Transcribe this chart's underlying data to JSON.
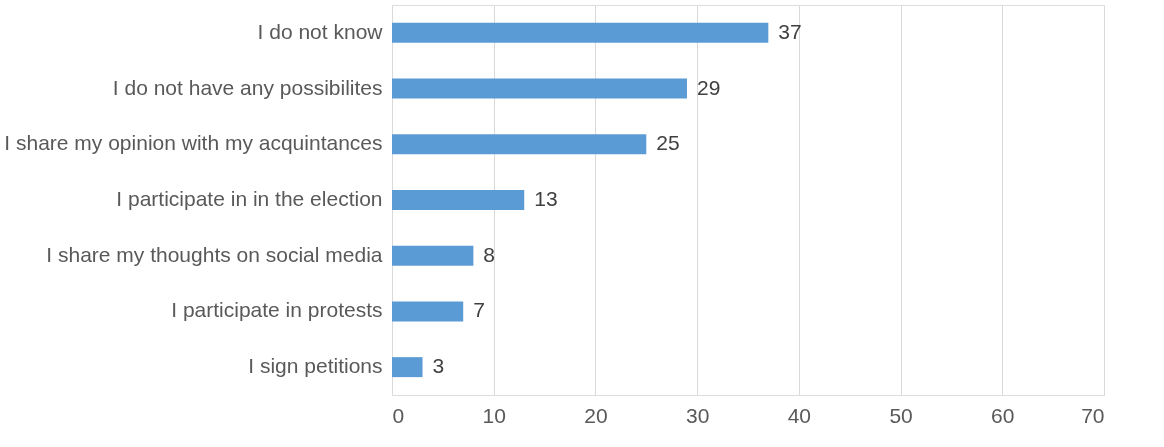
{
  "chart_data": {
    "type": "bar",
    "orientation": "horizontal",
    "categories": [
      "I do not know",
      "I do not have any possibilites",
      "I share my opinion with my acquintances",
      "I participate in in the election",
      "I share my thoughts on social media",
      "I participate in protests",
      "I sign petitions"
    ],
    "values": [
      37,
      29,
      25,
      13,
      8,
      7,
      3
    ],
    "color": "#5b9bd5",
    "xlim": [
      0,
      70
    ],
    "xticks": [
      0,
      10,
      20,
      30,
      40,
      50,
      60,
      70
    ],
    "grid": "x",
    "data_labels": true
  }
}
